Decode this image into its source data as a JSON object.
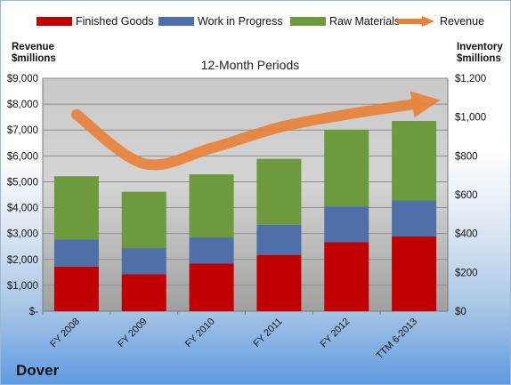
{
  "chart_data": {
    "type": "bar",
    "stacked": true,
    "subtitle": "12-Month Periods",
    "company": "Dover",
    "categories": [
      "FY 2008",
      "FY 2009",
      "FY 2010",
      "FY 2011",
      "FY 2012",
      "TTM 6-2013"
    ],
    "series": [
      {
        "name": "Finished Goods",
        "color": "#c00000",
        "values": [
          230,
          190,
          245,
          290,
          355,
          385
        ]
      },
      {
        "name": "Work in Progress",
        "color": "#4f6fa8",
        "values": [
          140,
          135,
          135,
          155,
          185,
          185
        ]
      },
      {
        "name": "Raw Materials",
        "color": "#6c9a3c",
        "values": [
          325,
          290,
          325,
          340,
          395,
          410
        ]
      }
    ],
    "line_series": {
      "name": "Revenue",
      "color": "#e8823a",
      "values": [
        7600,
        5700,
        6300,
        7100,
        7600,
        8000
      ]
    },
    "left_axis": {
      "title_line1": "Revenue",
      "title_line2": "$millions",
      "ylim": [
        0,
        9000
      ],
      "tick_labels": [
        "$-",
        "$1,000",
        "$2,000",
        "$3,000",
        "$4,000",
        "$5,000",
        "$6,000",
        "$7,000",
        "$8,000",
        "$9,000"
      ]
    },
    "right_axis": {
      "title_line1": "Inventory",
      "title_line2": "$millions",
      "ylim": [
        0,
        1200
      ],
      "tick_labels": [
        "$0",
        "$200",
        "$400",
        "$600",
        "$800",
        "$1,000",
        "$1,200"
      ]
    },
    "grid": true,
    "legend_position": "top"
  }
}
